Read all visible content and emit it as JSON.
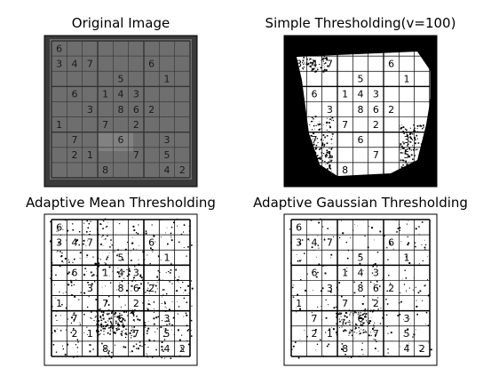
{
  "figure": {
    "panels": [
      {
        "title": "Original Image",
        "style": "gray"
      },
      {
        "title": "Simple Thresholding(v=100)",
        "style": "binary"
      },
      {
        "title": "Adaptive Mean Thresholding",
        "style": "mean"
      },
      {
        "title": "Adaptive Gaussian Thresholding",
        "style": "gauss"
      }
    ]
  },
  "chart_data": {
    "type": "image-grid",
    "grid_rows": 2,
    "grid_cols": 2,
    "sudoku_digits": [
      {
        "r": 0,
        "c": 0,
        "d": "6"
      },
      {
        "r": 1,
        "c": 0,
        "d": "3"
      },
      {
        "r": 1,
        "c": 1,
        "d": "4"
      },
      {
        "r": 1,
        "c": 2,
        "d": "7"
      },
      {
        "r": 1,
        "c": 6,
        "d": "6"
      },
      {
        "r": 2,
        "c": 4,
        "d": "5"
      },
      {
        "r": 2,
        "c": 7,
        "d": "1"
      },
      {
        "r": 3,
        "c": 1,
        "d": "6"
      },
      {
        "r": 3,
        "c": 3,
        "d": "1"
      },
      {
        "r": 3,
        "c": 4,
        "d": "4"
      },
      {
        "r": 3,
        "c": 5,
        "d": "3"
      },
      {
        "r": 4,
        "c": 2,
        "d": "3"
      },
      {
        "r": 4,
        "c": 4,
        "d": "8"
      },
      {
        "r": 4,
        "c": 5,
        "d": "6"
      },
      {
        "r": 4,
        "c": 6,
        "d": "2"
      },
      {
        "r": 5,
        "c": 0,
        "d": "1"
      },
      {
        "r": 5,
        "c": 3,
        "d": "7"
      },
      {
        "r": 5,
        "c": 5,
        "d": "2"
      },
      {
        "r": 6,
        "c": 1,
        "d": "7"
      },
      {
        "r": 6,
        "c": 4,
        "d": "6"
      },
      {
        "r": 6,
        "c": 7,
        "d": "3"
      },
      {
        "r": 7,
        "c": 1,
        "d": "2"
      },
      {
        "r": 7,
        "c": 2,
        "d": "1"
      },
      {
        "r": 7,
        "c": 5,
        "d": "7"
      },
      {
        "r": 7,
        "c": 7,
        "d": "5"
      },
      {
        "r": 8,
        "c": 3,
        "d": "8"
      },
      {
        "r": 8,
        "c": 7,
        "d": "4"
      },
      {
        "r": 8,
        "c": 8,
        "d": "2"
      }
    ],
    "colors": {
      "background": "#ffffff",
      "frame": "#000000",
      "original_paper": "#6e6e6e",
      "original_ink": "#1a1a1a",
      "binary_ink": "#000000"
    }
  }
}
